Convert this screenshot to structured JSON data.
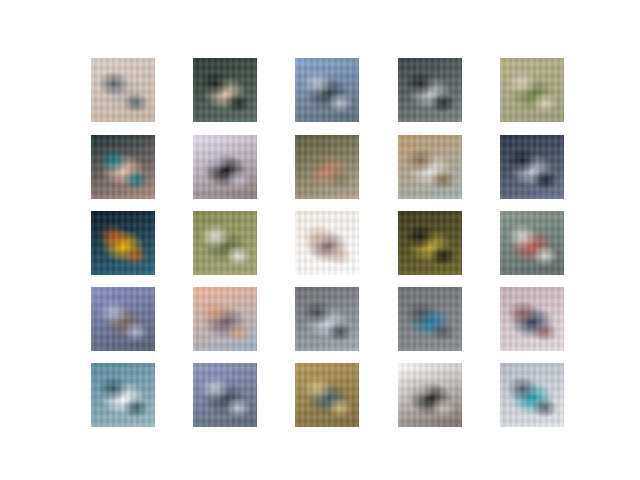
{
  "figure": {
    "rows": 5,
    "cols": 5,
    "tiles": [
      {
        "colors": [
          "#ddd0cb",
          "#b9b1b0",
          "#4a5a63",
          "#c9b8a6"
        ]
      },
      {
        "colors": [
          "#2e3b34",
          "#e2c7b0",
          "#0f1a17",
          "#5b6e66"
        ]
      },
      {
        "colors": [
          "#8aa7d1",
          "#30414c",
          "#c6d0d8",
          "#5e6d7a"
        ]
      },
      {
        "colors": [
          "#3b4448",
          "#c5c8c7",
          "#161b1f",
          "#7b8483"
        ]
      },
      {
        "colors": [
          "#bbb48e",
          "#6a7d44",
          "#e5d7c6",
          "#9ea07d"
        ]
      },
      {
        "colors": [
          "#1e3337",
          "#efc5b1",
          "#0d7c87",
          "#b08e84"
        ]
      },
      {
        "colors": [
          "#e7e1f3",
          "#111111",
          "#c9c3d6",
          "#8a7b7b"
        ]
      },
      {
        "colors": [
          "#5c5d3c",
          "#c4836a",
          "#7e7a55",
          "#b7a892"
        ]
      },
      {
        "colors": [
          "#c09c70",
          "#e7e4e2",
          "#7f6140",
          "#a3b3b4"
        ]
      },
      {
        "colors": [
          "#2a3447",
          "#c2c8d1",
          "#0f1623",
          "#6d7890"
        ]
      },
      {
        "colors": [
          "#0d1a28",
          "#ffb700",
          "#c65b17",
          "#2c6a80"
        ]
      },
      {
        "colors": [
          "#8d8f55",
          "#5d6a3a",
          "#f1f1ee",
          "#a4a676"
        ]
      },
      {
        "colors": [
          "#f6efe8",
          "#856363",
          "#d4b8a8",
          "#ffffff"
        ]
      },
      {
        "colors": [
          "#3e3a1b",
          "#c2a73a",
          "#0d0d0a",
          "#6f6a2c"
        ]
      },
      {
        "colors": [
          "#8a9a8f",
          "#c25a52",
          "#e6e6e4",
          "#5f6b6b"
        ]
      },
      {
        "colors": [
          "#8a93c6",
          "#7c6b5d",
          "#bac2d8",
          "#555d73"
        ]
      },
      {
        "colors": [
          "#f2b99a",
          "#6b5d6e",
          "#d99d78",
          "#9fb0c5"
        ]
      },
      {
        "colors": [
          "#6d6f73",
          "#cad3dd",
          "#3a4047",
          "#a3acb6"
        ]
      },
      {
        "colors": [
          "#6f7376",
          "#1e7ca7",
          "#4b4f53",
          "#8d9193"
        ]
      },
      {
        "colors": [
          "#c8b4ba",
          "#2a3e56",
          "#8c5a57",
          "#e6dde2"
        ]
      },
      {
        "colors": [
          "#5c8ea3",
          "#ffffff",
          "#2a4d5c",
          "#9dbbc6"
        ]
      },
      {
        "colors": [
          "#8c9ac6",
          "#3e4853",
          "#cfd4e4",
          "#5d6a78"
        ]
      },
      {
        "colors": [
          "#b89c5a",
          "#405c66",
          "#d9c884",
          "#7c6a40"
        ]
      },
      {
        "colors": [
          "#ffffff",
          "#1d1f20",
          "#cfc4bd",
          "#7a6e68"
        ]
      },
      {
        "colors": [
          "#b9c0ca",
          "#1f9fae",
          "#4a5560",
          "#e3e6ea"
        ]
      }
    ]
  }
}
